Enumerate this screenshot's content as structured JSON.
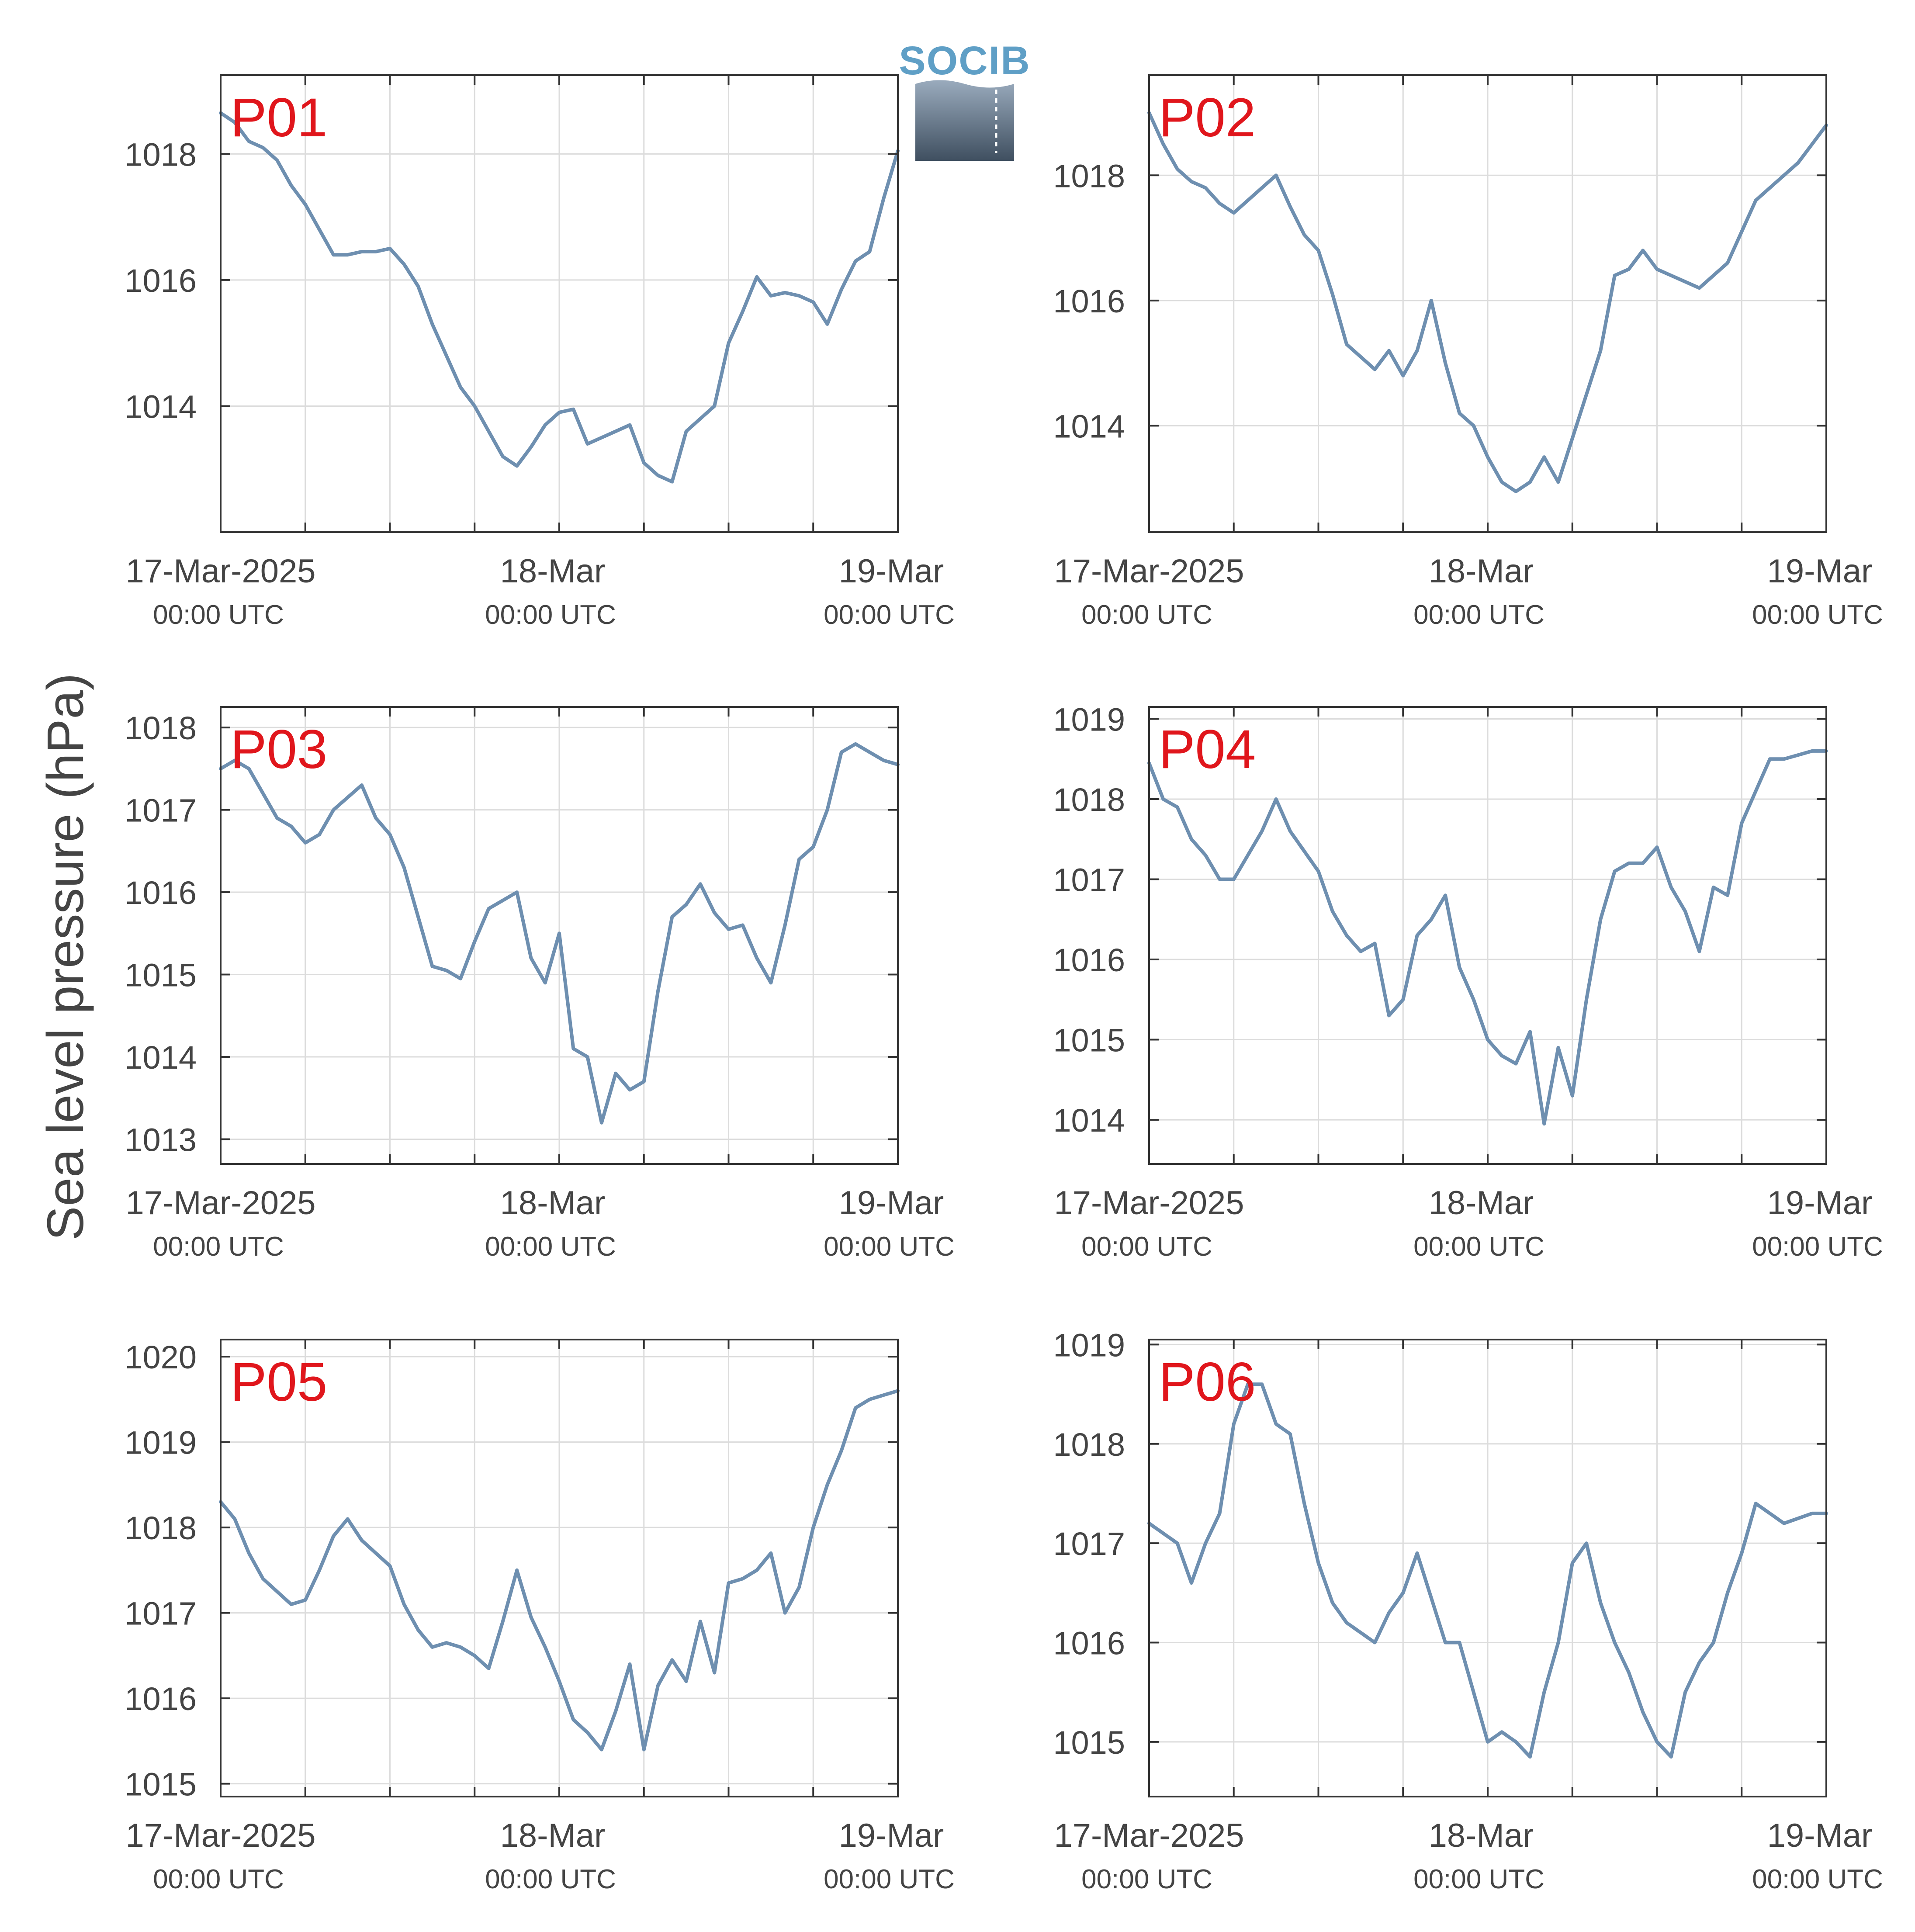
{
  "figure": {
    "ylabel": "Sea level pressure (hPa)",
    "logo_text": "SOCIB",
    "series_color": "#6e8fb0",
    "label_color": "#e0161c"
  },
  "chart_data": [
    {
      "type": "line",
      "title": "P01",
      "x_ticks": [
        {
          "main": "17-Mar-2025",
          "sub": "00:00 UTC"
        },
        {
          "main": "18-Mar",
          "sub": "00:00 UTC"
        },
        {
          "main": "19-Mar",
          "sub": "00:00 UTC"
        }
      ],
      "xlim_hours": [
        0,
        48
      ],
      "ylim": [
        1012.0,
        1019.25
      ],
      "yticks": [
        1014,
        1016,
        1018
      ],
      "grid": true,
      "x_hours": [
        0,
        1,
        2,
        3,
        4,
        5,
        6,
        7,
        8,
        9,
        10,
        11,
        12,
        13,
        14,
        15,
        16,
        17,
        18,
        19,
        20,
        21,
        22,
        23,
        24,
        25,
        26,
        27,
        28,
        29,
        30,
        31,
        32,
        33,
        34,
        35,
        36,
        37,
        38,
        39,
        40,
        41,
        42,
        43,
        44,
        45,
        46,
        47,
        48
      ],
      "values": [
        1018.65,
        1018.5,
        1018.2,
        1018.1,
        1017.9,
        1017.5,
        1017.2,
        1016.8,
        1016.4,
        1016.4,
        1016.45,
        1016.45,
        1016.5,
        1016.25,
        1015.9,
        1015.3,
        1014.8,
        1014.3,
        1014.0,
        1013.6,
        1013.2,
        1013.05,
        1013.35,
        1013.7,
        1013.9,
        1013.95,
        1013.4,
        1013.5,
        1013.6,
        1013.7,
        1013.1,
        1012.9,
        1012.8,
        1013.6,
        1013.8,
        1014.0,
        1015.0,
        1015.5,
        1016.05,
        1015.75,
        1015.8,
        1015.75,
        1015.65,
        1015.3,
        1015.85,
        1016.3,
        1016.45,
        1017.3,
        1018.05
      ]
    },
    {
      "type": "line",
      "title": "P02",
      "x_ticks": [
        {
          "main": "17-Mar-2025",
          "sub": "00:00 UTC"
        },
        {
          "main": "18-Mar",
          "sub": "00:00 UTC"
        },
        {
          "main": "19-Mar",
          "sub": "00:00 UTC"
        }
      ],
      "xlim_hours": [
        0,
        48
      ],
      "ylim": [
        1012.3,
        1019.6
      ],
      "yticks": [
        1014,
        1016,
        1018
      ],
      "grid": true,
      "x_hours": [
        0,
        1,
        2,
        3,
        4,
        5,
        6,
        7,
        8,
        9,
        10,
        11,
        12,
        13,
        14,
        15,
        16,
        17,
        18,
        19,
        20,
        21,
        22,
        23,
        24,
        25,
        26,
        27,
        28,
        29,
        30,
        31,
        32,
        33,
        34,
        35,
        36,
        37,
        38,
        39,
        40,
        41,
        42,
        43,
        44,
        45,
        46,
        47,
        48
      ],
      "values": [
        1019.0,
        1018.5,
        1018.1,
        1017.9,
        1017.8,
        1017.55,
        1017.4,
        1017.6,
        1017.8,
        1018.0,
        1017.5,
        1017.05,
        1016.8,
        1016.1,
        1015.3,
        1015.1,
        1014.9,
        1015.2,
        1014.8,
        1015.2,
        1016.0,
        1015.0,
        1014.2,
        1014.0,
        1013.5,
        1013.1,
        1012.95,
        1013.1,
        1013.5,
        1013.1,
        1013.8,
        1014.5,
        1015.2,
        1016.4,
        1016.5,
        1016.8,
        1016.5,
        1016.4,
        1016.3,
        1016.2,
        1016.4,
        1016.6,
        1017.1,
        1017.6,
        1017.8,
        1018.0,
        1018.2,
        1018.5,
        1018.8
      ]
    },
    {
      "type": "line",
      "title": "P03",
      "x_ticks": [
        {
          "main": "17-Mar-2025",
          "sub": "00:00 UTC"
        },
        {
          "main": "18-Mar",
          "sub": "00:00 UTC"
        },
        {
          "main": "19-Mar",
          "sub": "00:00 UTC"
        }
      ],
      "xlim_hours": [
        0,
        48
      ],
      "ylim": [
        1012.7,
        1018.25
      ],
      "yticks": [
        1013,
        1014,
        1015,
        1016,
        1017,
        1018
      ],
      "grid": true,
      "x_hours": [
        0,
        1,
        2,
        3,
        4,
        5,
        6,
        7,
        8,
        9,
        10,
        11,
        12,
        13,
        14,
        15,
        16,
        17,
        18,
        19,
        20,
        21,
        22,
        23,
        24,
        25,
        26,
        27,
        28,
        29,
        30,
        31,
        32,
        33,
        34,
        35,
        36,
        37,
        38,
        39,
        40,
        41,
        42,
        43,
        44,
        45,
        46,
        47,
        48
      ],
      "values": [
        1017.5,
        1017.6,
        1017.5,
        1017.2,
        1016.9,
        1016.8,
        1016.6,
        1016.7,
        1017.0,
        1017.15,
        1017.3,
        1016.9,
        1016.7,
        1016.3,
        1015.7,
        1015.1,
        1015.05,
        1014.95,
        1015.4,
        1015.8,
        1015.9,
        1016.0,
        1015.2,
        1014.9,
        1015.5,
        1014.1,
        1014.0,
        1013.2,
        1013.8,
        1013.6,
        1013.7,
        1014.8,
        1015.7,
        1015.85,
        1016.1,
        1015.75,
        1015.55,
        1015.6,
        1015.2,
        1014.9,
        1015.6,
        1016.4,
        1016.55,
        1017.0,
        1017.7,
        1017.8,
        1017.7,
        1017.6,
        1017.55
      ]
    },
    {
      "type": "line",
      "title": "P04",
      "x_ticks": [
        {
          "main": "17-Mar-2025",
          "sub": "00:00 UTC"
        },
        {
          "main": "18-Mar",
          "sub": "00:00 UTC"
        },
        {
          "main": "19-Mar",
          "sub": "00:00 UTC"
        }
      ],
      "xlim_hours": [
        0,
        48
      ],
      "ylim": [
        1013.45,
        1019.15
      ],
      "yticks": [
        1014,
        1015,
        1016,
        1017,
        1018,
        1019
      ],
      "grid": true,
      "x_hours": [
        0,
        1,
        2,
        3,
        4,
        5,
        6,
        7,
        8,
        9,
        10,
        11,
        12,
        13,
        14,
        15,
        16,
        17,
        18,
        19,
        20,
        21,
        22,
        23,
        24,
        25,
        26,
        27,
        28,
        29,
        30,
        31,
        32,
        33,
        34,
        35,
        36,
        37,
        38,
        39,
        40,
        41,
        42,
        43,
        44,
        45,
        46,
        47,
        48
      ],
      "values": [
        1018.45,
        1018.0,
        1017.9,
        1017.5,
        1017.3,
        1017.0,
        1017.0,
        1017.3,
        1017.6,
        1018.0,
        1017.6,
        1017.35,
        1017.1,
        1016.6,
        1016.3,
        1016.1,
        1016.2,
        1015.3,
        1015.5,
        1016.3,
        1016.5,
        1016.8,
        1015.9,
        1015.5,
        1015.0,
        1014.8,
        1014.7,
        1015.1,
        1013.95,
        1014.9,
        1014.3,
        1015.5,
        1016.5,
        1017.1,
        1017.2,
        1017.2,
        1017.4,
        1016.9,
        1016.6,
        1016.1,
        1016.9,
        1016.8,
        1017.7,
        1018.1,
        1018.5,
        1018.5,
        1018.55,
        1018.6,
        1018.6
      ]
    },
    {
      "type": "line",
      "title": "P05",
      "x_ticks": [
        {
          "main": "17-Mar-2025",
          "sub": "00:00 UTC"
        },
        {
          "main": "18-Mar",
          "sub": "00:00 UTC"
        },
        {
          "main": "19-Mar",
          "sub": "00:00 UTC"
        }
      ],
      "xlim_hours": [
        0,
        48
      ],
      "ylim": [
        1014.85,
        1020.2
      ],
      "yticks": [
        1015,
        1016,
        1017,
        1018,
        1019,
        1020
      ],
      "grid": true,
      "x_hours": [
        0,
        1,
        2,
        3,
        4,
        5,
        6,
        7,
        8,
        9,
        10,
        11,
        12,
        13,
        14,
        15,
        16,
        17,
        18,
        19,
        20,
        21,
        22,
        23,
        24,
        25,
        26,
        27,
        28,
        29,
        30,
        31,
        32,
        33,
        34,
        35,
        36,
        37,
        38,
        39,
        40,
        41,
        42,
        43,
        44,
        45,
        46,
        47,
        48
      ],
      "values": [
        1018.3,
        1018.1,
        1017.7,
        1017.4,
        1017.25,
        1017.1,
        1017.15,
        1017.5,
        1017.9,
        1018.1,
        1017.85,
        1017.7,
        1017.55,
        1017.1,
        1016.8,
        1016.6,
        1016.65,
        1016.6,
        1016.5,
        1016.35,
        1016.9,
        1017.5,
        1016.95,
        1016.6,
        1016.2,
        1015.75,
        1015.6,
        1015.4,
        1015.85,
        1016.4,
        1015.4,
        1016.15,
        1016.45,
        1016.2,
        1016.9,
        1016.3,
        1017.35,
        1017.4,
        1017.5,
        1017.7,
        1017.0,
        1017.3,
        1018.0,
        1018.5,
        1018.9,
        1019.4,
        1019.5,
        1019.55,
        1019.6
      ]
    },
    {
      "type": "line",
      "title": "P06",
      "x_ticks": [
        {
          "main": "17-Mar-2025",
          "sub": "00:00 UTC"
        },
        {
          "main": "18-Mar",
          "sub": "00:00 UTC"
        },
        {
          "main": "19-Mar",
          "sub": "00:00 UTC"
        }
      ],
      "xlim_hours": [
        0,
        48
      ],
      "ylim": [
        1014.45,
        1019.05
      ],
      "yticks": [
        1015,
        1016,
        1017,
        1018,
        1019
      ],
      "grid": true,
      "x_hours": [
        0,
        1,
        2,
        3,
        4,
        5,
        6,
        7,
        8,
        9,
        10,
        11,
        12,
        13,
        14,
        15,
        16,
        17,
        18,
        19,
        20,
        21,
        22,
        23,
        24,
        25,
        26,
        27,
        28,
        29,
        30,
        31,
        32,
        33,
        34,
        35,
        36,
        37,
        38,
        39,
        40,
        41,
        42,
        43,
        44,
        45,
        46,
        47,
        48
      ],
      "values": [
        1017.2,
        1017.1,
        1017.0,
        1016.6,
        1017.0,
        1017.3,
        1018.2,
        1018.6,
        1018.6,
        1018.2,
        1018.1,
        1017.4,
        1016.8,
        1016.4,
        1016.2,
        1016.1,
        1016.0,
        1016.3,
        1016.5,
        1016.9,
        1016.45,
        1016.0,
        1016.0,
        1015.5,
        1015.0,
        1015.1,
        1015.0,
        1014.85,
        1015.5,
        1016.0,
        1016.8,
        1017.0,
        1016.4,
        1016.0,
        1015.7,
        1015.3,
        1015.0,
        1014.85,
        1015.5,
        1015.8,
        1016.0,
        1016.5,
        1016.9,
        1017.4,
        1017.3,
        1017.2,
        1017.25,
        1017.3,
        1017.3
      ]
    }
  ]
}
